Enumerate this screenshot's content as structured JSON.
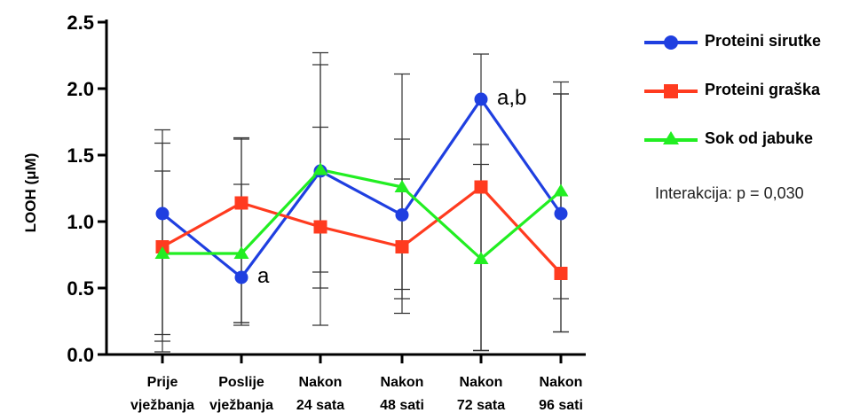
{
  "chart_data": {
    "type": "line",
    "ylabel": "LOOH (μM)",
    "xlabel": "",
    "ylim": [
      0,
      2.5
    ],
    "yticks": [
      "0.0",
      "0.5",
      "1.0",
      "1.5",
      "2.0",
      "2.5"
    ],
    "categories": [
      [
        "Prije",
        "vježbanja"
      ],
      [
        "Poslije",
        "vježbanja"
      ],
      [
        "Nakon",
        "24 sata"
      ],
      [
        "Nakon",
        "48 sati"
      ],
      [
        "Nakon",
        "72 sata"
      ],
      [
        "Nakon",
        "96 sati"
      ]
    ],
    "series": [
      {
        "name": "Proteini sirutke",
        "color": "#1f3fe0",
        "marker": "circle",
        "values": [
          1.06,
          0.58,
          1.38,
          1.05,
          1.92,
          1.06
        ],
        "err_low": [
          0.15,
          0.24,
          0.5,
          0.42,
          0.03,
          0.17
        ],
        "err_high": [
          1.69,
          1.62,
          2.27,
          2.11,
          2.26,
          2.05
        ]
      },
      {
        "name": "Proteini graška",
        "color": "#ff3b1f",
        "marker": "square",
        "values": [
          0.81,
          1.14,
          0.96,
          0.81,
          1.26,
          0.61
        ],
        "err_low": [
          0.1,
          0.24,
          0.62,
          0.31,
          0.03,
          0.17
        ],
        "err_high": [
          1.59,
          1.63,
          1.71,
          1.32,
          1.58,
          1.96
        ]
      },
      {
        "name": "Sok od jabuke",
        "color": "#22ee22",
        "marker": "triangle",
        "values": [
          0.76,
          0.76,
          1.39,
          1.26,
          0.72,
          1.23
        ],
        "err_low": [
          0.02,
          0.22,
          0.22,
          0.49,
          0.03,
          0.42
        ],
        "err_high": [
          1.38,
          1.28,
          2.18,
          1.62,
          1.43,
          1.96
        ]
      }
    ],
    "annotations": [
      {
        "text": "a",
        "category_index": 1,
        "y": 0.58
      },
      {
        "text": "a,b",
        "category_index": 4,
        "y": 1.92
      }
    ]
  },
  "interaction_text": "Interakcija: p = 0,030"
}
